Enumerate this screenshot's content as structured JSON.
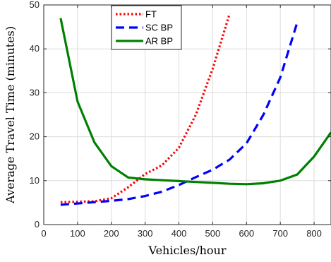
{
  "chart_data": {
    "type": "line",
    "xlabel": "Vehicles/hour",
    "ylabel": "Average Travel Time (minutes)",
    "xlim": [
      0,
      850
    ],
    "ylim": [
      0,
      50
    ],
    "xticks": [
      0,
      100,
      200,
      300,
      400,
      500,
      600,
      700,
      800
    ],
    "yticks": [
      0,
      10,
      20,
      30,
      40,
      50
    ],
    "grid": true,
    "legend_position": "top-center",
    "series": [
      {
        "name": "FT",
        "color": "#ff0000",
        "style": "dotted",
        "x": [
          50,
          100,
          150,
          200,
          250,
          300,
          350,
          400,
          450,
          500,
          550
        ],
        "y": [
          5.1,
          5.2,
          5.3,
          6.0,
          8.5,
          11.5,
          13.5,
          17.5,
          25.0,
          35.5,
          48.0
        ]
      },
      {
        "name": "SC BP",
        "color": "#0000ff",
        "style": "dashed",
        "x": [
          50,
          100,
          150,
          200,
          250,
          300,
          350,
          400,
          450,
          500,
          550,
          600,
          650,
          700,
          750
        ],
        "y": [
          4.5,
          4.8,
          5.1,
          5.4,
          5.8,
          6.5,
          7.5,
          9.0,
          10.8,
          12.5,
          14.8,
          18.5,
          25.0,
          33.5,
          46.0
        ]
      },
      {
        "name": "AR BP",
        "color": "#008000",
        "style": "solid",
        "x": [
          50,
          100,
          150,
          200,
          250,
          300,
          350,
          400,
          450,
          500,
          550,
          600,
          650,
          700,
          750,
          800,
          850
        ],
        "y": [
          47.0,
          28.0,
          18.7,
          13.3,
          10.7,
          10.3,
          10.1,
          9.9,
          9.7,
          9.5,
          9.3,
          9.2,
          9.4,
          10.0,
          11.4,
          15.5,
          21.0
        ]
      }
    ]
  }
}
